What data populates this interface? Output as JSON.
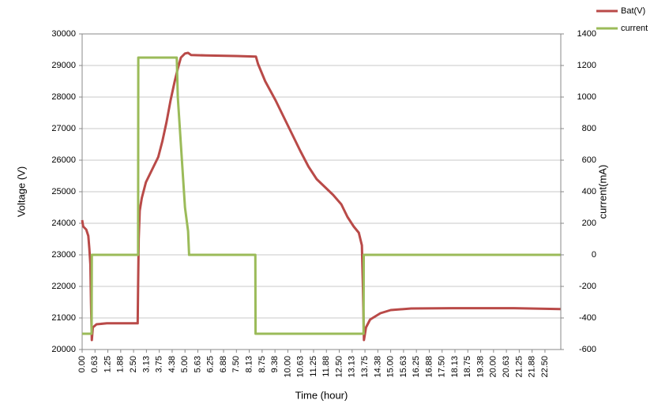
{
  "chart_data": {
    "type": "line",
    "x_label": "Time (hour)",
    "y_label": "Voltage (V)",
    "y2_label": "current(mA)",
    "xlim": [
      0,
      23.27
    ],
    "ylim": [
      20000,
      30000
    ],
    "y2lim": [
      -600,
      1400
    ],
    "grid": true,
    "legend": "top-right",
    "xticks": [
      {
        "value": 0,
        "label": "0.00"
      },
      {
        "value": 0.625,
        "label": "0.63"
      },
      {
        "value": 1.25,
        "label": "1.25"
      },
      {
        "value": 1.875,
        "label": "1.88"
      },
      {
        "value": 2.5,
        "label": "2.50"
      },
      {
        "value": 3.125,
        "label": "3.13"
      },
      {
        "value": 3.75,
        "label": "3.75"
      },
      {
        "value": 4.375,
        "label": "4.38"
      },
      {
        "value": 5,
        "label": "5.00"
      },
      {
        "value": 5.625,
        "label": "5.63"
      },
      {
        "value": 6.25,
        "label": "6.25"
      },
      {
        "value": 6.875,
        "label": "6.88"
      },
      {
        "value": 7.5,
        "label": "7.50"
      },
      {
        "value": 8.125,
        "label": "8.13"
      },
      {
        "value": 8.75,
        "label": "8.75"
      },
      {
        "value": 9.375,
        "label": "9.38"
      },
      {
        "value": 10,
        "label": "10.00"
      },
      {
        "value": 10.625,
        "label": "10.63"
      },
      {
        "value": 11.25,
        "label": "11.25"
      },
      {
        "value": 11.875,
        "label": "11.88"
      },
      {
        "value": 12.5,
        "label": "12.50"
      },
      {
        "value": 13.125,
        "label": "13.13"
      },
      {
        "value": 13.75,
        "label": "13.75"
      },
      {
        "value": 14.375,
        "label": "14.38"
      },
      {
        "value": 15,
        "label": "15.00"
      },
      {
        "value": 15.625,
        "label": "15.63"
      },
      {
        "value": 16.25,
        "label": "16.25"
      },
      {
        "value": 16.875,
        "label": "16.88"
      },
      {
        "value": 17.5,
        "label": "17.50"
      },
      {
        "value": 18.125,
        "label": "18.13"
      },
      {
        "value": 18.75,
        "label": "18.75"
      },
      {
        "value": 19.375,
        "label": "19.38"
      },
      {
        "value": 20,
        "label": "20.00"
      },
      {
        "value": 20.625,
        "label": "20.63"
      },
      {
        "value": 21.25,
        "label": "21.25"
      },
      {
        "value": 21.875,
        "label": "21.88"
      },
      {
        "value": 22.5,
        "label": "22.50"
      }
    ],
    "yticks": [
      20000,
      21000,
      22000,
      23000,
      24000,
      25000,
      26000,
      27000,
      28000,
      29000,
      30000
    ],
    "y2ticks": [
      -600,
      -400,
      -200,
      0,
      200,
      400,
      600,
      800,
      1000,
      1200,
      1400
    ],
    "series": [
      {
        "name": "Bat(V)",
        "color": "#b94a48",
        "x": [
          0,
          0.05,
          0.2,
          0.3,
          0.35,
          0.4,
          0.43,
          0.47,
          0.52,
          0.7,
          1.2,
          2.7,
          2.72,
          2.75,
          2.8,
          2.9,
          3.1,
          3.4,
          3.7,
          3.9,
          4.1,
          4.3,
          4.5,
          4.65,
          4.8,
          5.0,
          5.15,
          5.3,
          6.0,
          7.5,
          8.45,
          8.55,
          8.9,
          9.4,
          10.0,
          10.6,
          11.0,
          11.4,
          11.8,
          12.2,
          12.6,
          12.9,
          13.2,
          13.45,
          13.6,
          13.65,
          13.7,
          13.8,
          14.0,
          14.5,
          15.0,
          16.0,
          18.0,
          21.0,
          23.25
        ],
        "values": [
          24100,
          23900,
          23800,
          23600,
          23200,
          22700,
          21500,
          20300,
          20700,
          20800,
          20830,
          20830,
          22000,
          23500,
          24400,
          24800,
          25300,
          25700,
          26100,
          26600,
          27200,
          27900,
          28500,
          28900,
          29250,
          29380,
          29400,
          29330,
          29320,
          29300,
          29280,
          29050,
          28500,
          27900,
          27100,
          26300,
          25800,
          25400,
          25150,
          24900,
          24600,
          24200,
          23900,
          23700,
          23300,
          22000,
          20300,
          20700,
          20950,
          21150,
          21250,
          21300,
          21310,
          21310,
          21280
        ]
      },
      {
        "name": "current",
        "color": "#9bbb59",
        "axis": "y2",
        "x": [
          0,
          0.46,
          0.47,
          2.72,
          2.73,
          4.6,
          4.65,
          4.8,
          5.0,
          5.15,
          5.2,
          8.42,
          8.43,
          13.68,
          13.69,
          23.25
        ],
        "values": [
          -500,
          -500,
          0,
          0,
          1250,
          1250,
          1000,
          700,
          300,
          150,
          0,
          0,
          -500,
          -500,
          0,
          0
        ]
      }
    ]
  }
}
